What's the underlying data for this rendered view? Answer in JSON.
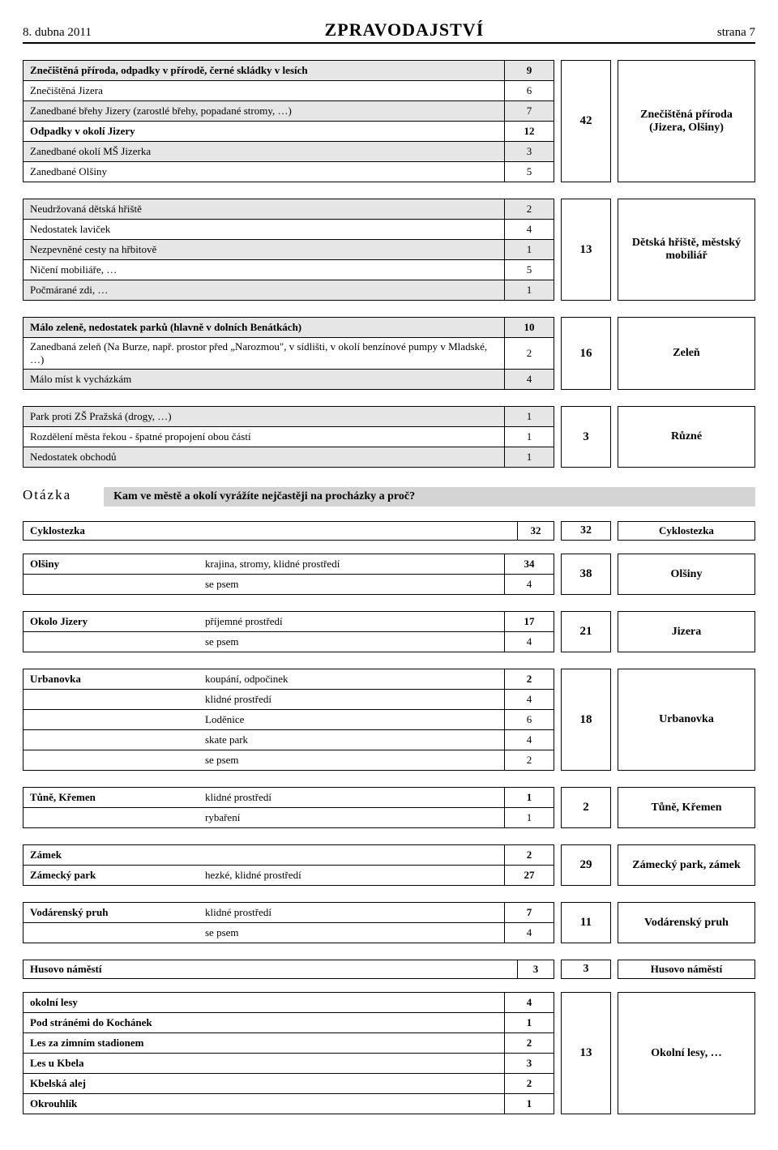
{
  "header": {
    "left": "8. dubna 2011",
    "center": "ZPRAVODAJSTVÍ",
    "right": "strana 7"
  },
  "b1": {
    "rows": [
      {
        "t": "Znečištěná příroda, odpadky v přírodě, černé skládky v lesích",
        "n": "9",
        "shade": true,
        "bold": true
      },
      {
        "t": "Znečištěná Jizera",
        "n": "6"
      },
      {
        "t": "Zanedbané břehy Jizery (zarostlé břehy, popadané stromy, …)",
        "n": "7",
        "shade": true
      },
      {
        "t": "Odpadky v okolí Jizery",
        "n": "12",
        "bold": true
      },
      {
        "t": "Zanedbané okolí MŠ Jizerka",
        "n": "3",
        "shade": true
      },
      {
        "t": "Zanedbané Olšiny",
        "n": "5"
      }
    ],
    "mid": "42",
    "right": "Znečištěná příroda (Jizera, Olšiny)"
  },
  "b2": {
    "rows": [
      {
        "t": "Neudržovaná dětská hřiště",
        "n": "2",
        "shade": true
      },
      {
        "t": "Nedostatek laviček",
        "n": "4"
      },
      {
        "t": "Nezpevněné cesty na hřbitově",
        "n": "1",
        "shade": true
      },
      {
        "t": "Ničení mobiliáře, …",
        "n": "5"
      },
      {
        "t": "Počmárané zdi, …",
        "n": "1",
        "shade": true
      }
    ],
    "mid": "13",
    "right": "Dětská hřiště, městský mobiliář"
  },
  "b3": {
    "rows": [
      {
        "t": "Málo zeleně, nedostatek parků (hlavně v dolních Benátkách)",
        "n": "10",
        "shade": true,
        "bold": true
      },
      {
        "t": "Zanedbaná zeleň (Na Burze, např. prostor před „Narozmou\", v sídlišti, v okolí benzínové pumpy v Mladské, …)",
        "n": "2"
      },
      {
        "t": "Málo míst k vycházkám",
        "n": "4",
        "shade": true
      }
    ],
    "mid": "16",
    "right": "Zeleň"
  },
  "b4": {
    "rows": [
      {
        "t": "Park proti ZŠ Pražská (drogy, …)",
        "n": "1",
        "shade": true
      },
      {
        "t": "Rozdělení města řekou - špatné propojení obou částí",
        "n": "1"
      },
      {
        "t": "Nedostatek obchodů",
        "n": "1",
        "shade": true
      }
    ],
    "mid": "3",
    "right": "Různé"
  },
  "question": {
    "label": "Otázka",
    "text": "Kam ve městě a okolí vyrážíte nejčastěji na procházky a proč?"
  },
  "s1": {
    "c1": "Cyklostezka",
    "c2": "32",
    "c3": "32",
    "c4": "Cyklostezka"
  },
  "w_olsiny": {
    "rows": [
      {
        "l": "Olšiny",
        "t": "krajina, stromy, klidné prostředí",
        "n": "34",
        "bold": true
      },
      {
        "l": "",
        "t": "se psem",
        "n": "4"
      }
    ],
    "mid": "38",
    "right": "Olšiny"
  },
  "w_jizera": {
    "rows": [
      {
        "l": "Okolo Jizery",
        "t": "příjemné prostředí",
        "n": "17",
        "bold": true
      },
      {
        "l": "",
        "t": "se psem",
        "n": "4"
      }
    ],
    "mid": "21",
    "right": "Jizera"
  },
  "w_urb": {
    "rows": [
      {
        "l": "Urbanovka",
        "t": "koupání, odpočinek",
        "n": "2",
        "bold": true
      },
      {
        "l": "",
        "t": "klidné prostředí",
        "n": "4"
      },
      {
        "l": "",
        "t": "Loděnice",
        "n": "6"
      },
      {
        "l": "",
        "t": "skate park",
        "n": "4"
      },
      {
        "l": "",
        "t": "se psem",
        "n": "2"
      }
    ],
    "mid": "18",
    "right": "Urbanovka"
  },
  "w_tune": {
    "rows": [
      {
        "l": "Tůně, Křemen",
        "t": "klidné prostředí",
        "n": "1",
        "bold": true
      },
      {
        "l": "",
        "t": "rybaření",
        "n": "1"
      }
    ],
    "mid": "2",
    "right": "Tůně, Křemen"
  },
  "w_zamek": {
    "rows": [
      {
        "l": "Zámek",
        "t": "",
        "n": "2",
        "bold": true
      },
      {
        "l": "Zámecký park",
        "t": "hezké, klidné prostředí",
        "n": "27",
        "bold": true
      }
    ],
    "mid": "29",
    "right": "Zámecký park, zámek"
  },
  "w_vod": {
    "rows": [
      {
        "l": "Vodárenský pruh",
        "t": "klidné prostředí",
        "n": "7",
        "bold": true
      },
      {
        "l": "",
        "t": "se psem",
        "n": "4"
      }
    ],
    "mid": "11",
    "right": "Vodárenský pruh"
  },
  "s2": {
    "c1": "Husovo náměstí",
    "c2": "3",
    "c3": "3",
    "c4": "Husovo náměstí"
  },
  "b_lesy": {
    "rows": [
      {
        "t": "okolní lesy",
        "n": "4",
        "bold": true
      },
      {
        "t": "Pod stránémi do Kochánek",
        "n": "1",
        "bold": true
      },
      {
        "t": "Les za zimním stadionem",
        "n": "2",
        "bold": true
      },
      {
        "t": "Les u Kbela",
        "n": "3",
        "bold": true
      },
      {
        "t": "Kbelská alej",
        "n": "2",
        "bold": true
      },
      {
        "t": "Okrouhlík",
        "n": "1",
        "bold": true
      }
    ],
    "mid": "13",
    "right": "Okolní lesy, …"
  }
}
